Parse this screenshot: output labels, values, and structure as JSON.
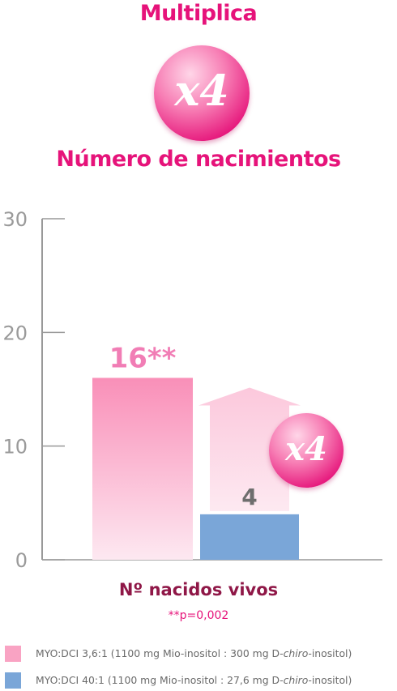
{
  "header": {
    "title": "Multiplica",
    "badge_label": "x4",
    "subtitle": "Número de nacimientos"
  },
  "chart_badge_label": "x4",
  "footnote": "**p=0,002",
  "colors": {
    "accent": "#e6137a",
    "label_dark": "#8f1747",
    "pink_bar": "#f9a3c3",
    "blue_bar": "#7aa6d8",
    "axis": "#999999",
    "value_gray": "#6e6e6e"
  },
  "legend": [
    {
      "prefix": "MYO:DCI 3,6:1 (1100 mg Mio-inositol : 300 mg D-",
      "italic": "chiro",
      "suffix": "-inositol)",
      "color": "#f9a3c3"
    },
    {
      "prefix": "MYO:DCI 40:1 (1100 mg Mio-inositol : 27,6 mg D-",
      "italic": "chiro",
      "suffix": "-inositol)",
      "color": "#7aa6d8"
    }
  ],
  "chart_data": {
    "type": "bar",
    "categories": [
      "Nº nacidos vivos"
    ],
    "xlabel": "Nº nacidos vivos",
    "ylabel": "",
    "ylim": [
      0,
      30
    ],
    "yticks": [
      0,
      10,
      20,
      30
    ],
    "grid": false,
    "series": [
      {
        "name": "MYO:DCI 3,6:1 (1100 mg Mio-inositol : 300 mg D-chiro-inositol)",
        "values": [
          16
        ],
        "data_label": "16**",
        "color": "#f9a3c3"
      },
      {
        "name": "MYO:DCI 40:1 (1100 mg Mio-inositol : 27,6 mg D-chiro-inositol)",
        "values": [
          4
        ],
        "data_label": "4",
        "color": "#7aa6d8"
      }
    ]
  }
}
